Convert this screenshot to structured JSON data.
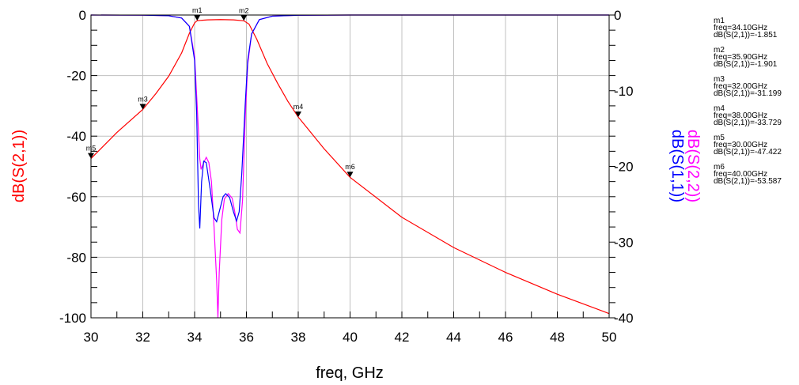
{
  "chart_data": {
    "type": "line",
    "xlabel": "freq, GHz",
    "ylabel_left": "dB(S(2,1))",
    "ylabel_right": [
      "dB(S(2,2))",
      "dB(S(1,1))"
    ],
    "xlim": [
      30,
      50
    ],
    "ylim_left": [
      -100,
      0
    ],
    "ylim_right": [
      -40,
      0
    ],
    "x_ticks": [
      30,
      32,
      34,
      36,
      38,
      40,
      42,
      44,
      46,
      48,
      50
    ],
    "y_ticks_left": [
      0,
      -20,
      -40,
      -60,
      -80,
      -100
    ],
    "y_ticks_right": [
      0,
      -10,
      -20,
      -30,
      -40
    ],
    "grid": true,
    "colors": {
      "s21": "#ff0000",
      "s22": "#ff00ff",
      "s11": "#0000ff"
    },
    "series": [
      {
        "name": "dB(S(2,1))",
        "axis": "left",
        "color": "#ff0000",
        "points": [
          [
            30,
            -47.4
          ],
          [
            31,
            -38.8
          ],
          [
            32,
            -31.2
          ],
          [
            32.5,
            -26.0
          ],
          [
            33,
            -20.2
          ],
          [
            33.5,
            -12.5
          ],
          [
            33.8,
            -6.0
          ],
          [
            34,
            -2.6
          ],
          [
            34.1,
            -1.85
          ],
          [
            34.5,
            -1.6
          ],
          [
            35,
            -1.5
          ],
          [
            35.5,
            -1.6
          ],
          [
            35.9,
            -1.9
          ],
          [
            36.1,
            -3.0
          ],
          [
            36.4,
            -8.0
          ],
          [
            36.8,
            -16.0
          ],
          [
            37.2,
            -22.5
          ],
          [
            37.6,
            -28.5
          ],
          [
            38,
            -33.7
          ],
          [
            39,
            -44.2
          ],
          [
            40,
            -53.6
          ],
          [
            42,
            -66.8
          ],
          [
            44,
            -76.8
          ],
          [
            46,
            -85.0
          ],
          [
            48,
            -92.2
          ],
          [
            50,
            -98.6
          ]
        ]
      },
      {
        "name": "dB(S(2,2))",
        "axis": "right",
        "color": "#ff00ff",
        "points": [
          [
            30,
            0
          ],
          [
            32,
            -0.02
          ],
          [
            33,
            -0.1
          ],
          [
            33.5,
            -0.4
          ],
          [
            33.8,
            -1.5
          ],
          [
            34.0,
            -5.5
          ],
          [
            34.1,
            -12.0
          ],
          [
            34.2,
            -19.0
          ],
          [
            34.25,
            -20.4
          ],
          [
            34.35,
            -19.5
          ],
          [
            34.45,
            -18.8
          ],
          [
            34.55,
            -19.5
          ],
          [
            34.65,
            -22.0
          ],
          [
            34.75,
            -28.0
          ],
          [
            34.85,
            -35.0
          ],
          [
            34.9,
            -40.0
          ],
          [
            34.95,
            -34.0
          ],
          [
            35.05,
            -27.0
          ],
          [
            35.15,
            -24.3
          ],
          [
            35.3,
            -23.6
          ],
          [
            35.45,
            -24.2
          ],
          [
            35.55,
            -26.0
          ],
          [
            35.65,
            -28.3
          ],
          [
            35.75,
            -28.8
          ],
          [
            35.85,
            -24.5
          ],
          [
            35.95,
            -14.0
          ],
          [
            36.05,
            -6.5
          ],
          [
            36.2,
            -2.5
          ],
          [
            36.5,
            -0.6
          ],
          [
            37,
            -0.15
          ],
          [
            38,
            -0.03
          ],
          [
            40,
            0
          ],
          [
            50,
            0
          ]
        ]
      },
      {
        "name": "dB(S(1,1))",
        "axis": "right",
        "color": "#0000ff",
        "points": [
          [
            30,
            0
          ],
          [
            32,
            -0.02
          ],
          [
            33,
            -0.1
          ],
          [
            33.5,
            -0.4
          ],
          [
            33.8,
            -1.5
          ],
          [
            34.0,
            -6.0
          ],
          [
            34.08,
            -13.0
          ],
          [
            34.15,
            -25.0
          ],
          [
            34.2,
            -28.2
          ],
          [
            34.27,
            -22.0
          ],
          [
            34.35,
            -19.3
          ],
          [
            34.45,
            -19.5
          ],
          [
            34.6,
            -23.0
          ],
          [
            34.75,
            -26.8
          ],
          [
            34.85,
            -27.3
          ],
          [
            34.95,
            -26.0
          ],
          [
            35.1,
            -24.0
          ],
          [
            35.2,
            -23.6
          ],
          [
            35.35,
            -24.1
          ],
          [
            35.5,
            -26.0
          ],
          [
            35.62,
            -27.2
          ],
          [
            35.72,
            -26.0
          ],
          [
            35.82,
            -21.0
          ],
          [
            35.95,
            -12.0
          ],
          [
            36.05,
            -6.0
          ],
          [
            36.2,
            -2.5
          ],
          [
            36.5,
            -0.6
          ],
          [
            37,
            -0.15
          ],
          [
            38,
            -0.03
          ],
          [
            40,
            0
          ],
          [
            50,
            0
          ]
        ]
      }
    ],
    "markers": [
      {
        "id": "m1",
        "freq": 34.1,
        "value": -1.851,
        "freq_text": "freq=34.10GHz",
        "value_text": "dB(S(2,1))=-1.851"
      },
      {
        "id": "m2",
        "freq": 35.9,
        "value": -1.901,
        "freq_text": "freq=35.90GHz",
        "value_text": "dB(S(2,1))=-1.901"
      },
      {
        "id": "m3",
        "freq": 32.0,
        "value": -31.199,
        "freq_text": "freq=32.00GHz",
        "value_text": "dB(S(2,1))=-31.199"
      },
      {
        "id": "m4",
        "freq": 38.0,
        "value": -33.729,
        "freq_text": "freq=38.00GHz",
        "value_text": "dB(S(2,1))=-33.729"
      },
      {
        "id": "m5",
        "freq": 30.0,
        "value": -47.422,
        "freq_text": "freq=30.00GHz",
        "value_text": "dB(S(2,1))=-47.422"
      },
      {
        "id": "m6",
        "freq": 40.0,
        "value": -53.587,
        "freq_text": "freq=40.00GHz",
        "value_text": "dB(S(2,1))=-53.587"
      }
    ]
  }
}
